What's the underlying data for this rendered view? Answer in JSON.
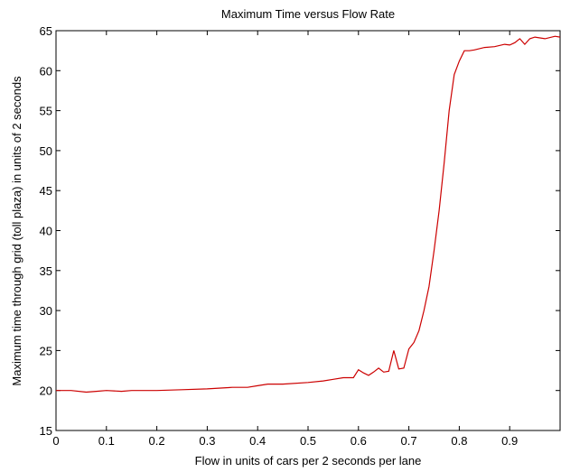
{
  "chart_data": {
    "type": "line",
    "title": "Maximum Time versus Flow Rate",
    "xlabel": "Flow in units of cars per 2 seconds per lane",
    "ylabel": "Maximum time through grid (toll plaza) in units of 2 seconds",
    "xlim": [
      0,
      1
    ],
    "ylim": [
      15,
      65
    ],
    "xticks": [
      0,
      0.1,
      0.2,
      0.3,
      0.4,
      0.5,
      0.6,
      0.7,
      0.8,
      0.9
    ],
    "yticks": [
      15,
      20,
      25,
      30,
      35,
      40,
      45,
      50,
      55,
      60,
      65
    ],
    "grid": false,
    "series": [
      {
        "color": "#cc0000",
        "x": [
          0.0,
          0.03,
          0.06,
          0.08,
          0.1,
          0.13,
          0.15,
          0.2,
          0.25,
          0.3,
          0.35,
          0.38,
          0.4,
          0.42,
          0.45,
          0.5,
          0.53,
          0.55,
          0.57,
          0.58,
          0.59,
          0.6,
          0.61,
          0.62,
          0.63,
          0.64,
          0.65,
          0.66,
          0.67,
          0.68,
          0.69,
          0.7,
          0.71,
          0.72,
          0.73,
          0.74,
          0.75,
          0.76,
          0.77,
          0.78,
          0.79,
          0.8,
          0.81,
          0.82,
          0.83,
          0.85,
          0.87,
          0.89,
          0.9,
          0.91,
          0.92,
          0.93,
          0.94,
          0.95,
          0.97,
          0.99,
          1.0
        ],
        "y": [
          20.0,
          20.0,
          19.8,
          19.9,
          20.0,
          19.9,
          20.0,
          20.0,
          20.1,
          20.2,
          20.4,
          20.4,
          20.6,
          20.8,
          20.8,
          21.0,
          21.2,
          21.4,
          21.6,
          21.6,
          21.6,
          22.6,
          22.2,
          21.9,
          22.3,
          22.8,
          22.3,
          22.4,
          25.0,
          22.7,
          22.8,
          25.2,
          26.0,
          27.5,
          30.0,
          33.0,
          37.5,
          42.5,
          48.5,
          55.0,
          59.5,
          61.2,
          62.5,
          62.5,
          62.6,
          62.9,
          63.0,
          63.3,
          63.2,
          63.5,
          64.0,
          63.3,
          64.0,
          64.2,
          64.0,
          64.3,
          64.2
        ]
      }
    ]
  }
}
